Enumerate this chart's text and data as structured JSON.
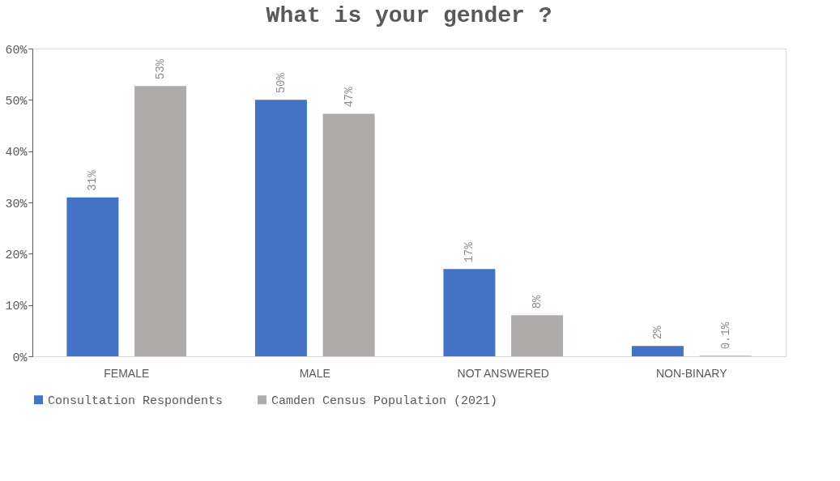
{
  "chart_data": {
    "type": "bar",
    "title": "What is your gender ?",
    "categories": [
      "FEMALE",
      "MALE",
      "NOT ANSWERED",
      "NON-BINARY"
    ],
    "series": [
      {
        "name": "Consultation Respondents",
        "color": "#4472c4",
        "values": [
          31,
          50,
          17,
          2
        ],
        "value_labels": [
          "31%",
          "50%",
          "17%",
          "2%"
        ]
      },
      {
        "name": "Camden Census Population (2021)",
        "color": "#afabab",
        "values": [
          52.7,
          47.3,
          8,
          0.1
        ],
        "value_labels": [
          "53%",
          "47%",
          "8%",
          "0.1%"
        ]
      }
    ],
    "ylim": [
      0,
      60
    ],
    "yticks": [
      {
        "value": 0,
        "label": "0%"
      },
      {
        "value": 10,
        "label": "10%"
      },
      {
        "value": 20,
        "label": "20%"
      },
      {
        "value": 30,
        "label": "30%"
      },
      {
        "value": 40,
        "label": "40%"
      },
      {
        "value": 50,
        "label": "50%"
      },
      {
        "value": 60,
        "label": "60%"
      }
    ],
    "grid": false,
    "legend": "bottom"
  }
}
